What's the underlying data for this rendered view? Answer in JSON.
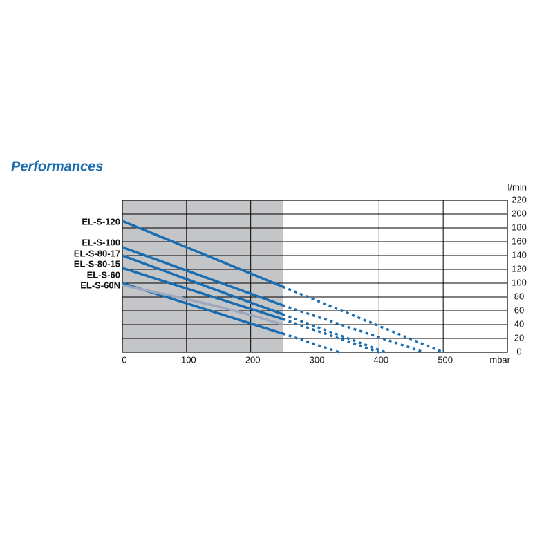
{
  "chart_data": {
    "type": "line",
    "title": "Performances",
    "x_label": "mbar",
    "y_label": "l/min",
    "xlim": [
      0,
      600
    ],
    "xticks": [
      0,
      100,
      200,
      300,
      400,
      500
    ],
    "ylim": [
      0,
      220
    ],
    "yticks": [
      0,
      20,
      40,
      60,
      80,
      100,
      120,
      140,
      160,
      180,
      200,
      220
    ],
    "grid": true,
    "shaded_xlim": [
      0,
      250
    ],
    "shade_color": "#c4c5c7",
    "series": [
      {
        "name": "EL-S-120",
        "color": "#1a6db0",
        "x": [
          0,
          250,
          500
        ],
        "values": [
          190,
          95,
          0
        ]
      },
      {
        "name": "EL-S-100",
        "color": "#1a6db0",
        "x": [
          0,
          250,
          470
        ],
        "values": [
          152,
          68,
          0
        ]
      },
      {
        "name": "EL-S-80-17",
        "color": "#1a6db0",
        "x": [
          0,
          250,
          410
        ],
        "values": [
          140,
          55,
          0
        ]
      },
      {
        "name": "EL-S-80-15",
        "color": "#1a6db0",
        "x": [
          0,
          250,
          400
        ],
        "values": [
          122,
          48,
          0
        ]
      },
      {
        "name": "EL-S-60",
        "color": "#1a6db0",
        "x": [
          0,
          250,
          338
        ],
        "values": [
          100,
          27,
          0
        ]
      },
      {
        "name": "EL-S-60N",
        "color": "#9ba8bf",
        "x": [
          0,
          50,
          100,
          150,
          200,
          250
        ],
        "values": [
          97,
          87,
          77,
          66,
          54,
          40
        ]
      }
    ]
  }
}
